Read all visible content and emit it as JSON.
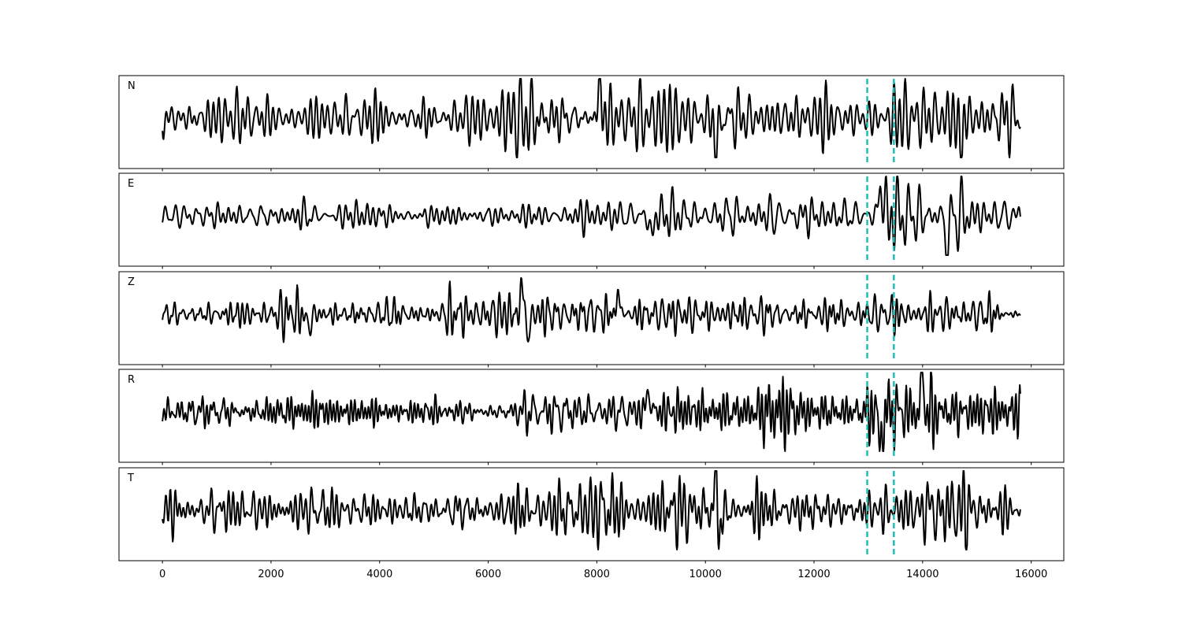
{
  "chart_data": {
    "type": "line",
    "title": "",
    "xlabel": "",
    "ylabel": "",
    "xlim": [
      -800,
      16600
    ],
    "x_ticks": [
      0,
      2000,
      4000,
      6000,
      8000,
      10000,
      12000,
      14000,
      16000
    ],
    "x_tick_labels": [
      "0",
      "2000",
      "4000",
      "6000",
      "8000",
      "10000",
      "12000",
      "14000",
      "16000"
    ],
    "x_range": [
      0,
      15800
    ],
    "num_samples": 1580,
    "panels": [
      "N",
      "E",
      "Z",
      "R",
      "T"
    ],
    "markers": [
      {
        "x": 12980,
        "style": "dashed",
        "color": "#1fbfb8"
      },
      {
        "x": 13470,
        "style": "dashed",
        "color": "#1fbfb8"
      }
    ],
    "line_color": "#000000",
    "grid": false,
    "series": [
      {
        "label": "N",
        "seed": 11,
        "envelope": [
          [
            0,
            0.55
          ],
          [
            6000,
            0.5
          ],
          [
            6500,
            0.85
          ],
          [
            8000,
            1.0
          ],
          [
            8600,
            0.65
          ],
          [
            10000,
            0.85
          ],
          [
            11500,
            0.6
          ],
          [
            12800,
            0.5
          ],
          [
            13500,
            0.75
          ],
          [
            14200,
            0.95
          ],
          [
            15800,
            0.85
          ]
        ],
        "spikes": [
          [
            8050,
            0.95
          ],
          [
            10200,
            -1.0
          ],
          [
            14700,
            -0.9
          ]
        ]
      },
      {
        "label": "E",
        "seed": 23,
        "envelope": [
          [
            0,
            0.35
          ],
          [
            8400,
            0.4
          ],
          [
            8900,
            0.65
          ],
          [
            10000,
            0.55
          ],
          [
            12900,
            0.35
          ],
          [
            13200,
            0.95
          ],
          [
            14000,
            0.95
          ],
          [
            15800,
            0.5
          ]
        ],
        "spikes": [
          [
            13230,
            0.95
          ],
          [
            14450,
            -1.0
          ],
          [
            9000,
            -0.6
          ]
        ]
      },
      {
        "label": "Z",
        "seed": 37,
        "envelope": [
          [
            0,
            0.3
          ],
          [
            2500,
            0.5
          ],
          [
            3000,
            0.35
          ],
          [
            5500,
            0.55
          ],
          [
            6300,
            0.55
          ],
          [
            7000,
            0.6
          ],
          [
            8500,
            0.55
          ],
          [
            10000,
            0.45
          ],
          [
            12000,
            0.5
          ],
          [
            15800,
            0.45
          ]
        ],
        "spikes": [
          [
            6640,
            1.0
          ],
          [
            6720,
            -0.85
          ],
          [
            2700,
            -0.45
          ],
          [
            8400,
            0.55
          ]
        ]
      },
      {
        "label": "R",
        "seed": 53,
        "envelope": [
          [
            0,
            0.3
          ],
          [
            6000,
            0.35
          ],
          [
            7500,
            0.55
          ],
          [
            9000,
            0.6
          ],
          [
            12900,
            0.45
          ],
          [
            13200,
            0.9
          ],
          [
            14000,
            1.0
          ],
          [
            14800,
            0.8
          ],
          [
            15800,
            0.5
          ]
        ],
        "spikes": [
          [
            13230,
            -1.0
          ],
          [
            14000,
            0.95
          ],
          [
            8950,
            0.6
          ]
        ]
      },
      {
        "label": "T",
        "seed": 71,
        "envelope": [
          [
            0,
            0.5
          ],
          [
            6000,
            0.55
          ],
          [
            7000,
            0.8
          ],
          [
            8000,
            0.9
          ],
          [
            9000,
            0.65
          ],
          [
            10200,
            0.9
          ],
          [
            11500,
            0.6
          ],
          [
            12900,
            0.5
          ],
          [
            13500,
            0.75
          ],
          [
            14200,
            1.0
          ],
          [
            15800,
            0.7
          ]
        ],
        "spikes": [
          [
            10200,
            1.0
          ],
          [
            14200,
            1.0
          ],
          [
            14220,
            -1.0
          ],
          [
            10270,
            -0.8
          ]
        ]
      }
    ]
  }
}
